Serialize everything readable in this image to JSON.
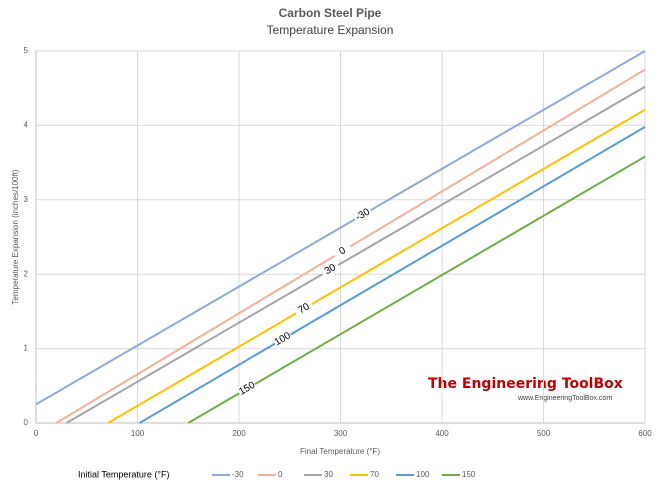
{
  "chart_data": {
    "type": "line",
    "title": "Carbon Steel Pipe",
    "subtitle": "Temperature Expansion",
    "x_label": "Final Temperature (°F)",
    "y_label": "Temperature Expansion (inches/100ft)",
    "legend_title": "Initial Temperature (°F)",
    "legend": "bottom",
    "xlim": [
      0,
      600
    ],
    "xticks": [
      0,
      100,
      200,
      300,
      400,
      500,
      600
    ],
    "ylim": [
      0,
      5
    ],
    "yticks": [
      0,
      1,
      2,
      3,
      4,
      5
    ],
    "grid": true,
    "series": [
      {
        "name": "-30",
        "color": "#8eaad8",
        "x": [
          0,
          600
        ],
        "values": [
          0.25,
          5.0
        ]
      },
      {
        "name": "0",
        "color": "#f4b09a",
        "x": [
          20,
          600
        ],
        "values": [
          0,
          4.75
        ]
      },
      {
        "name": "30",
        "color": "#a5a5a5",
        "x": [
          30,
          600
        ],
        "values": [
          0,
          4.52
        ]
      },
      {
        "name": "70",
        "color": "#ffc000",
        "x": [
          71,
          600
        ],
        "values": [
          0,
          4.21
        ]
      },
      {
        "name": "100",
        "color": "#5b9bd5",
        "x": [
          102,
          600
        ],
        "values": [
          0,
          3.98
        ]
      },
      {
        "name": "150",
        "color": "#70ad47",
        "x": [
          150,
          600
        ],
        "values": [
          0,
          3.58
        ]
      }
    ],
    "watermark": "The Engineering ToolBox",
    "watermark_url": "www.EngineeringToolBox.com"
  }
}
